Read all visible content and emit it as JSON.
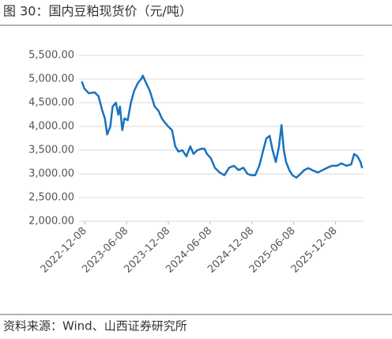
{
  "chart_data": {
    "type": "line",
    "title": "图 30：国内豆粕现货价（元/吨）",
    "source": "资料来源：Wind、山西证券研究所",
    "x": [
      "2022-11-24",
      "2022-12-05",
      "2022-12-25",
      "2023-01-19",
      "2023-02-05",
      "2023-02-22",
      "2023-03-05",
      "2023-03-15",
      "2023-03-29",
      "2023-04-08",
      "2023-04-22",
      "2023-05-03",
      "2023-05-10",
      "2023-05-20",
      "2023-05-30",
      "2023-06-13",
      "2023-06-27",
      "2023-07-11",
      "2023-07-28",
      "2023-08-11",
      "2023-08-18",
      "2023-09-01",
      "2023-09-18",
      "2023-10-09",
      "2023-10-26",
      "2023-11-09",
      "2023-11-23",
      "2023-12-07",
      "2023-12-24",
      "2024-01-07",
      "2024-01-21",
      "2024-02-07",
      "2024-02-25",
      "2024-03-13",
      "2024-03-27",
      "2024-04-13",
      "2024-05-01",
      "2024-05-14",
      "2024-05-25",
      "2024-06-11",
      "2024-06-28",
      "2024-07-19",
      "2024-08-09",
      "2024-08-30",
      "2024-09-20",
      "2024-10-10",
      "2024-10-31",
      "2024-11-18",
      "2024-12-05",
      "2024-12-22",
      "2025-01-09",
      "2025-01-26",
      "2025-02-09",
      "2025-02-23",
      "2025-03-08",
      "2025-03-22",
      "2025-04-05",
      "2025-04-16",
      "2025-04-26",
      "2025-05-06",
      "2025-05-20",
      "2025-06-03",
      "2025-06-20",
      "2025-07-08",
      "2025-07-25",
      "2025-08-11",
      "2025-09-01",
      "2025-09-22",
      "2025-10-13",
      "2025-11-03",
      "2025-11-23",
      "2025-12-14",
      "2026-01-04",
      "2026-01-25",
      "2026-02-15",
      "2026-02-28",
      "2026-03-14",
      "2026-03-28",
      "2026-04-04"
    ],
    "series": [
      {
        "name": "国内豆粕现货价",
        "color": "#1a72bf",
        "values": [
          4950,
          4800,
          4700,
          4720,
          4640,
          4330,
          4170,
          3830,
          4000,
          4420,
          4500,
          4250,
          4420,
          3920,
          4170,
          4130,
          4500,
          4750,
          4920,
          5000,
          5070,
          4920,
          4750,
          4420,
          4330,
          4170,
          4080,
          4000,
          3920,
          3580,
          3470,
          3500,
          3370,
          3580,
          3420,
          3500,
          3530,
          3530,
          3420,
          3330,
          3130,
          3030,
          2970,
          3130,
          3170,
          3080,
          3130,
          3000,
          2970,
          2970,
          3170,
          3500,
          3750,
          3800,
          3500,
          3250,
          3580,
          4030,
          3500,
          3250,
          3080,
          2970,
          2920,
          3000,
          3080,
          3120,
          3070,
          3030,
          3080,
          3130,
          3170,
          3170,
          3220,
          3170,
          3200,
          3420,
          3370,
          3250,
          3120
        ]
      }
    ],
    "xlim": [
      "2022-11-12",
      "2026-04-10"
    ],
    "xticks": [
      "2022-12-08",
      "2023-06-08",
      "2023-12-08",
      "2024-06-08",
      "2024-12-08",
      "2025-06-08",
      "2025-12-08"
    ],
    "ylim": [
      2000,
      5500
    ],
    "yticks": [
      {
        "value": 2000,
        "label": "2,000.00"
      },
      {
        "value": 2500,
        "label": "2,500.00"
      },
      {
        "value": 3000,
        "label": "3,000.00"
      },
      {
        "value": 3500,
        "label": "3,500.00"
      },
      {
        "value": 4000,
        "label": "4,000.00"
      },
      {
        "value": 4500,
        "label": "4,500.00"
      },
      {
        "value": 5000,
        "label": "5,000.00"
      },
      {
        "value": 5500,
        "label": "5,500.00"
      }
    ],
    "grid": true
  }
}
